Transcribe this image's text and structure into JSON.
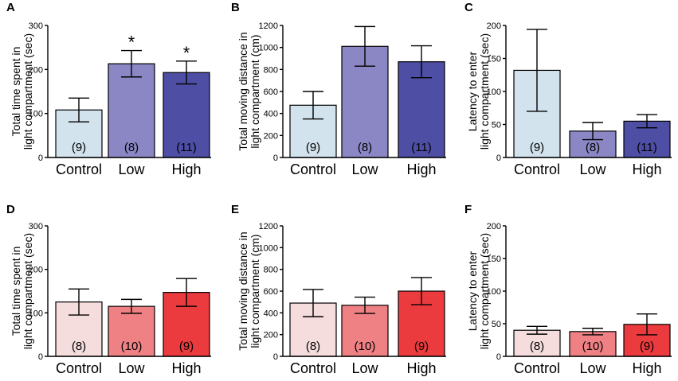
{
  "chart_data": [
    {
      "panel": "A",
      "type": "bar",
      "ylabel": [
        "Total time spent in",
        "light compartment (sec)"
      ],
      "ylim": [
        0,
        300
      ],
      "yticks": [
        0,
        100,
        200,
        300
      ],
      "categories": [
        "Control",
        "Low",
        "High"
      ],
      "values": [
        108,
        213,
        193
      ],
      "errors": [
        27,
        30,
        26
      ],
      "n_labels": [
        "(9)",
        "(8)",
        "(11)"
      ],
      "annotations": [
        "",
        "*",
        "*"
      ],
      "colors": [
        "#d2e3ed",
        "#8b87c4",
        "#4d4ea4"
      ]
    },
    {
      "panel": "B",
      "type": "bar",
      "ylabel": [
        "Total moving distance in",
        "light compartment (cm)"
      ],
      "ylim": [
        0,
        1200
      ],
      "yticks": [
        0,
        200,
        400,
        600,
        800,
        1000,
        1200
      ],
      "categories": [
        "Control",
        "Low",
        "High"
      ],
      "values": [
        475,
        1010,
        870
      ],
      "errors": [
        125,
        180,
        145
      ],
      "n_labels": [
        "(9)",
        "(8)",
        "(11)"
      ],
      "annotations": [
        "",
        "",
        ""
      ],
      "colors": [
        "#d2e3ed",
        "#8b87c4",
        "#4d4ea4"
      ]
    },
    {
      "panel": "C",
      "type": "bar",
      "ylabel": [
        "Latency to enter",
        "light compartment (sec)"
      ],
      "ylim": [
        0,
        200
      ],
      "yticks": [
        0,
        50,
        100,
        150,
        200
      ],
      "categories": [
        "Control",
        "Low",
        "High"
      ],
      "values": [
        132,
        40,
        55
      ],
      "errors": [
        62,
        13,
        10
      ],
      "n_labels": [
        "(9)",
        "(8)",
        "(11)"
      ],
      "annotations": [
        "",
        "",
        ""
      ],
      "colors": [
        "#d2e3ed",
        "#8b87c4",
        "#4d4ea4"
      ]
    },
    {
      "panel": "D",
      "type": "bar",
      "ylabel": [
        "Total time spent in",
        "light compartment (sec)"
      ],
      "ylim": [
        0,
        300
      ],
      "yticks": [
        0,
        100,
        200,
        300
      ],
      "categories": [
        "Control",
        "Low",
        "High"
      ],
      "values": [
        125,
        115,
        147
      ],
      "errors": [
        30,
        16,
        32
      ],
      "n_labels": [
        "(8)",
        "(10)",
        "(9)"
      ],
      "annotations": [
        "",
        "",
        ""
      ],
      "colors": [
        "#f5dcdd",
        "#ef8184",
        "#ec3b3e"
      ]
    },
    {
      "panel": "E",
      "type": "bar",
      "ylabel": [
        "Total moving distance in",
        "light compartment (cm)"
      ],
      "ylim": [
        0,
        1200
      ],
      "yticks": [
        0,
        200,
        400,
        600,
        800,
        1000,
        1200
      ],
      "categories": [
        "Control",
        "Low",
        "High"
      ],
      "values": [
        490,
        470,
        600
      ],
      "errors": [
        125,
        75,
        125
      ],
      "n_labels": [
        "(8)",
        "(10)",
        "(9)"
      ],
      "annotations": [
        "",
        "",
        ""
      ],
      "colors": [
        "#f5dcdd",
        "#ef8184",
        "#ec3b3e"
      ]
    },
    {
      "panel": "F",
      "type": "bar",
      "ylabel": [
        "Latency to enter",
        "light compartment (sec)"
      ],
      "ylim": [
        0,
        200
      ],
      "yticks": [
        0,
        50,
        100,
        150,
        200
      ],
      "categories": [
        "Control",
        "Low",
        "High"
      ],
      "values": [
        40,
        38,
        49
      ],
      "errors": [
        6,
        5,
        16
      ],
      "n_labels": [
        "(8)",
        "(10)",
        "(9)"
      ],
      "annotations": [
        "",
        "",
        ""
      ],
      "colors": [
        "#f5dcdd",
        "#ef8184",
        "#ec3b3e"
      ]
    }
  ]
}
